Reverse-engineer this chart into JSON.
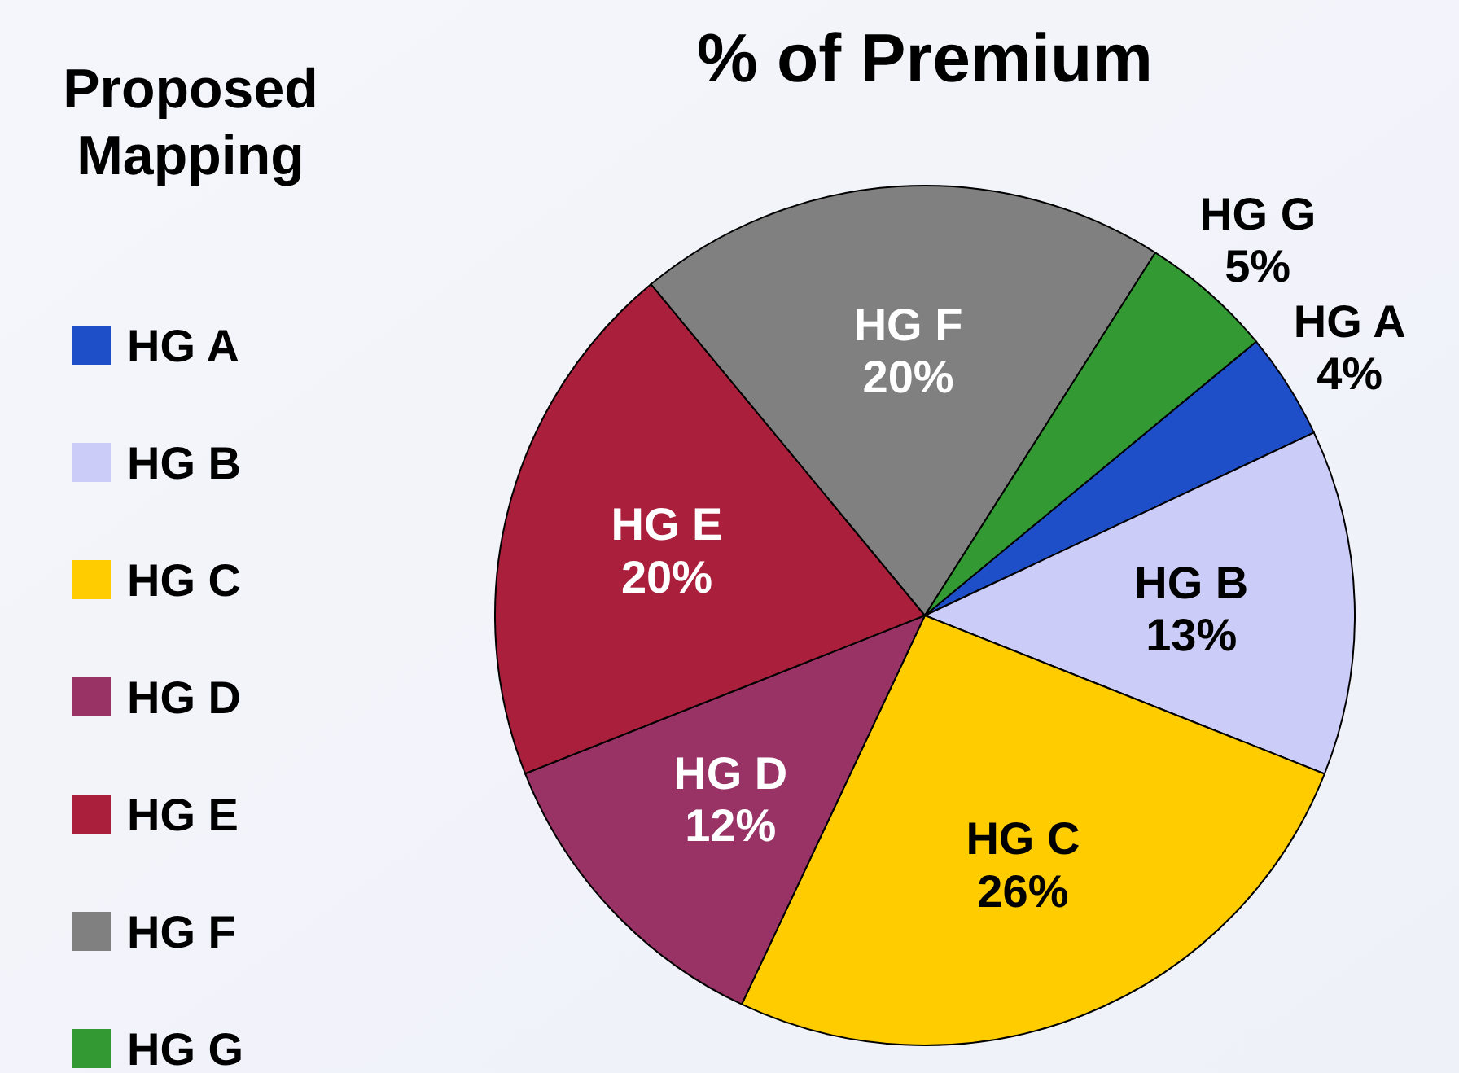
{
  "chart_data": {
    "type": "pie",
    "title": "% of Premium",
    "legend_title": "Proposed Mapping",
    "legend": "left",
    "categories": [
      "HG A",
      "HG B",
      "HG C",
      "HG D",
      "HG E",
      "HG F",
      "HG G"
    ],
    "values": [
      4,
      13,
      26,
      12,
      20,
      20,
      5
    ],
    "value_labels": [
      "4%",
      "13%",
      "26%",
      "12%",
      "20%",
      "20%",
      "5%"
    ],
    "colors": [
      "#1f4fc8",
      "#ccccf8",
      "#ffcc00",
      "#993366",
      "#aa1f3c",
      "#808080",
      "#339933"
    ]
  }
}
